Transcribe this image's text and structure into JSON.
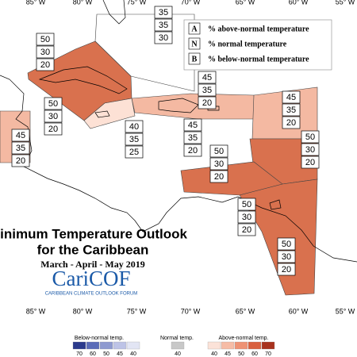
{
  "lon_labels": [
    "85° W",
    "80° W",
    "75° W",
    "70° W",
    "65° W",
    "60° W",
    "55° W"
  ],
  "legend": [
    {
      "letter": "A",
      "text": "% above-normal temperature"
    },
    {
      "letter": "N",
      "text": "% normal temperature"
    },
    {
      "letter": "B",
      "text": "% below-normal temperature"
    }
  ],
  "title": {
    "line1": "Minimum Temperature Outlook",
    "line2": "for the Caribbean",
    "period": "March - April - May 2019"
  },
  "logo": {
    "name": "CariCOF",
    "tagline": "CARIBBEAN CLIMATE OUTLOOK FORUM"
  },
  "regions": [
    {
      "values": [
        35,
        35,
        30
      ]
    },
    {
      "values": [
        50,
        30,
        20
      ]
    },
    {
      "values": [
        45,
        35,
        20
      ]
    },
    {
      "values": [
        45,
        35,
        20
      ]
    },
    {
      "values": [
        50,
        30,
        20
      ]
    },
    {
      "values": [
        40,
        35,
        25
      ]
    },
    {
      "values": [
        45,
        35,
        20
      ]
    },
    {
      "values": [
        45,
        35,
        20
      ]
    },
    {
      "values": [
        50,
        30,
        20
      ]
    },
    {
      "values": [
        50,
        30,
        20
      ]
    },
    {
      "values": [
        50,
        30,
        20
      ]
    },
    {
      "values": [
        50,
        30,
        20
      ]
    }
  ],
  "colorbar": {
    "below": {
      "label": "Below-normal temp.",
      "ticks": [
        70,
        60,
        50,
        45,
        40
      ]
    },
    "normal": {
      "label": "Normal temp.",
      "ticks": [
        40
      ]
    },
    "above": {
      "label": "Above-normal temp.",
      "ticks": [
        40,
        45,
        50,
        60,
        70
      ]
    }
  }
}
